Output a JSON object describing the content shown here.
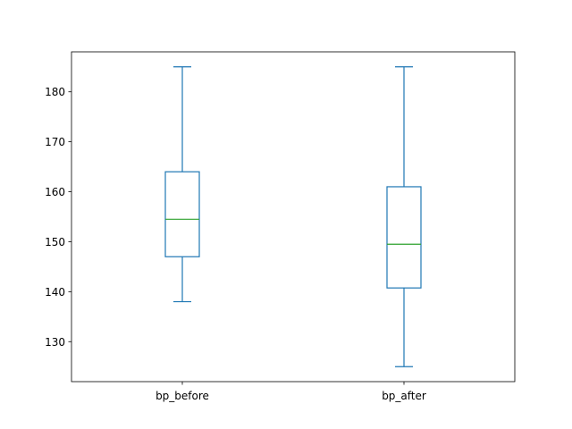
{
  "chart_data": {
    "type": "box",
    "title": "",
    "xlabel": "",
    "ylabel": "",
    "categories": [
      "bp_before",
      "bp_after"
    ],
    "boxes": [
      {
        "name": "bp_before",
        "whisker_low": 138,
        "q1": 147,
        "median": 154.5,
        "q3": 164,
        "whisker_high": 185
      },
      {
        "name": "bp_after",
        "whisker_low": 125,
        "q1": 140.75,
        "median": 149.5,
        "q3": 161,
        "whisker_high": 185
      }
    ],
    "ylim": [
      122,
      188
    ],
    "yticks": [
      130,
      140,
      150,
      160,
      170,
      180
    ],
    "grid": false,
    "colors": {
      "box": "#1f77b4",
      "median": "#2ca02c",
      "axes": "#000000"
    }
  }
}
